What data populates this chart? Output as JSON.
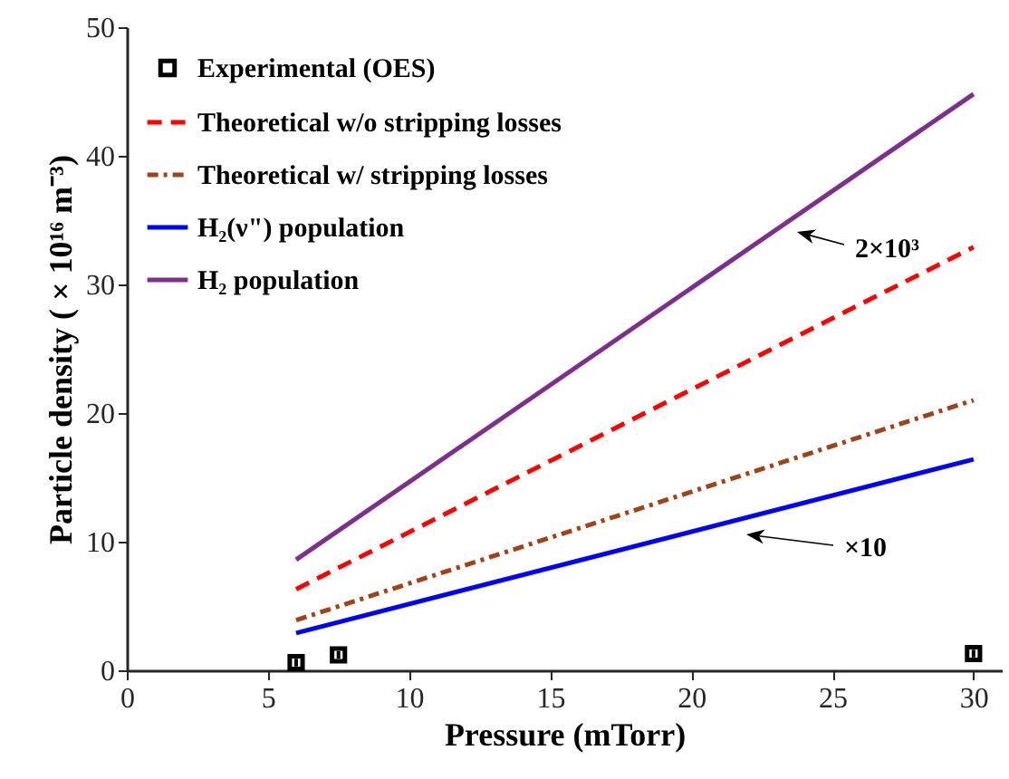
{
  "chart_data": {
    "type": "line",
    "xlabel": "Pressure (mTorr)",
    "ylabel": "Particle density ( × 10¹⁶ m⁻³)",
    "xlim": [
      0,
      31
    ],
    "xticks": [
      0,
      5,
      10,
      15,
      20,
      25,
      30
    ],
    "ylim": [
      0,
      50
    ],
    "yticks": [
      0,
      10,
      20,
      30,
      40,
      50
    ],
    "grid": false,
    "legend": "top left",
    "series": [
      {
        "name": "Experimental (OES)",
        "type": "scatter",
        "color": "#000000",
        "marker": "square",
        "x": [
          6,
          7.5,
          30
        ],
        "values": [
          0.6,
          1.2,
          1.3
        ],
        "errors": [
          0.3,
          0.3,
          0.3
        ]
      },
      {
        "name": "Theoretical w/o stripping losses",
        "color": "#ff0000",
        "line_style": "dashed",
        "x": [
          6,
          30
        ],
        "values": [
          6.3,
          32.9
        ]
      },
      {
        "name": "Theoretical w/ stripping losses",
        "color": "#a0421a",
        "line_style": "dashdot",
        "x": [
          6,
          30
        ],
        "values": [
          3.9,
          21.0
        ]
      },
      {
        "name": "H₂(ν\") population",
        "color": "#0000ff",
        "line_style": "solid",
        "x": [
          6,
          30
        ],
        "values": [
          2.9,
          16.4
        ]
      },
      {
        "name": "H₂ population",
        "color": "#7e2f8e",
        "line_style": "solid",
        "x": [
          6,
          30
        ],
        "values": [
          8.6,
          44.8
        ]
      }
    ],
    "annotations": [
      "2×10³",
      "×10"
    ]
  }
}
